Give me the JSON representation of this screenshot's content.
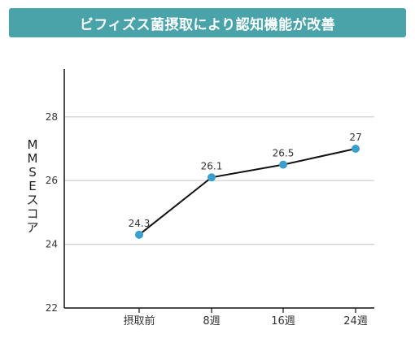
{
  "chart_data": {
    "type": "line",
    "title": "ビフィズス菌摂取により認知機能が改善",
    "ylabel": "MMSEスコア",
    "xlabel": "",
    "categories": [
      "摂取前",
      "8週",
      "16週",
      "24週"
    ],
    "values": [
      24.3,
      26.1,
      26.5,
      27
    ],
    "data_labels": [
      "24.3",
      "26.1",
      "26.5",
      "27"
    ],
    "ylim": [
      22,
      29.5
    ],
    "yticks": [
      22,
      24,
      26,
      28
    ],
    "grid": true,
    "colors": {
      "title_bg": "#4ba3aa",
      "line": "#111111",
      "marker": "#3a9fcc",
      "grid": "#cccccc",
      "axis": "#111111",
      "text": "#333333"
    }
  }
}
